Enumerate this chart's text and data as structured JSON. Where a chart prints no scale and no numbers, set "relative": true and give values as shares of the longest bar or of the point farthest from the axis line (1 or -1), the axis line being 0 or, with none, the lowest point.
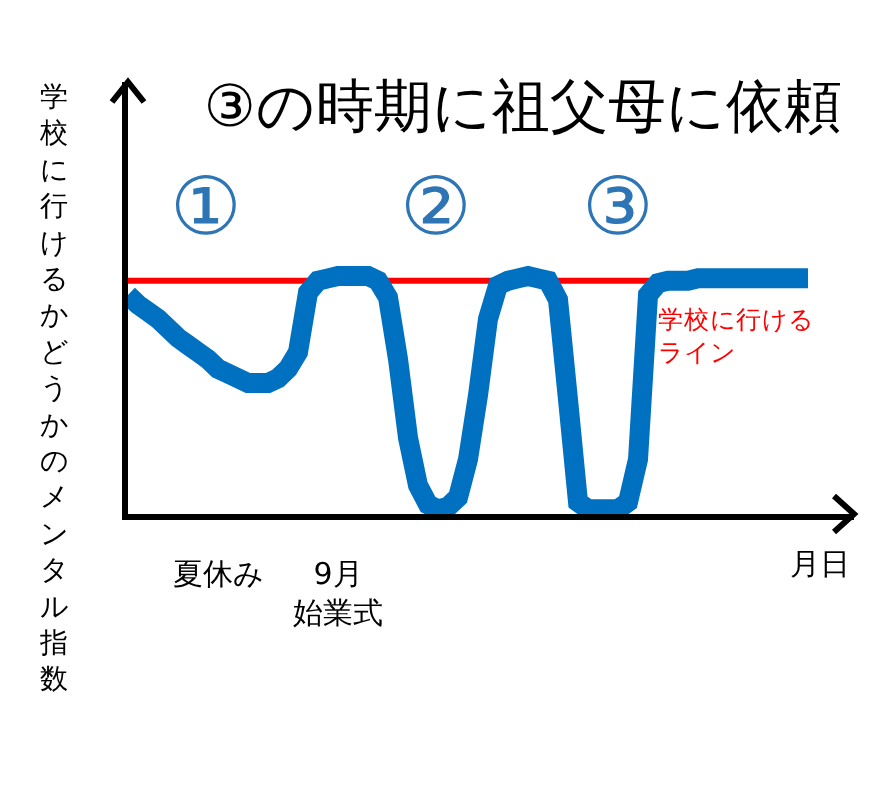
{
  "chart_data": {
    "type": "line",
    "title": "③の時期に祖父母に依頼",
    "xlabel": "月日",
    "ylabel": "学校に行けるかどうかのメンタル指数",
    "relative": true,
    "categories": [
      null,
      null,
      null,
      null,
      null,
      null,
      null,
      null,
      null,
      "夏休み",
      null,
      null,
      null,
      null,
      null,
      null,
      null,
      null,
      null,
      null,
      null,
      "9月始業式",
      null,
      null,
      null,
      null,
      null,
      null,
      null,
      null,
      null,
      null,
      null,
      null,
      null,
      null,
      null,
      null,
      null,
      null,
      null,
      null,
      null,
      null,
      null,
      null,
      null,
      null,
      null,
      null,
      null,
      null,
      null,
      null,
      null,
      null,
      null,
      null,
      null,
      null,
      null,
      null,
      null,
      null,
      null,
      null,
      null,
      null,
      null
    ],
    "series": [
      {
        "color": "#0070c0",
        "values": [
          0.92,
          0.88,
          0.85,
          0.82,
          0.78,
          0.74,
          0.71,
          0.68,
          0.65,
          0.61,
          0.59,
          0.57,
          0.55,
          0.55,
          0.55,
          0.57,
          0.61,
          0.68,
          0.93,
          0.98,
          0.99,
          1.0,
          1.0,
          1.0,
          1.0,
          0.98,
          0.91,
          0.65,
          0.32,
          0.12,
          0.04,
          0.02,
          0.03,
          0.07,
          0.23,
          0.5,
          0.82,
          0.96,
          0.98,
          0.99,
          1.0,
          0.99,
          0.98,
          0.9,
          0.48,
          0.05,
          0.02,
          0.02,
          0.02,
          0.02,
          0.05,
          0.23,
          0.92,
          0.97,
          0.98,
          0.98,
          0.98,
          0.99,
          0.99,
          0.99,
          0.99,
          0.99,
          0.99,
          0.99,
          0.99,
          0.99,
          0.99,
          0.99,
          0.99
        ]
      }
    ],
    "ref_lines": [
      {
        "axis": "y",
        "value": 0.98,
        "label": "学校に行けるライン",
        "color": "#ff0000"
      }
    ],
    "annotations": [
      "①",
      "②",
      "③"
    ]
  }
}
